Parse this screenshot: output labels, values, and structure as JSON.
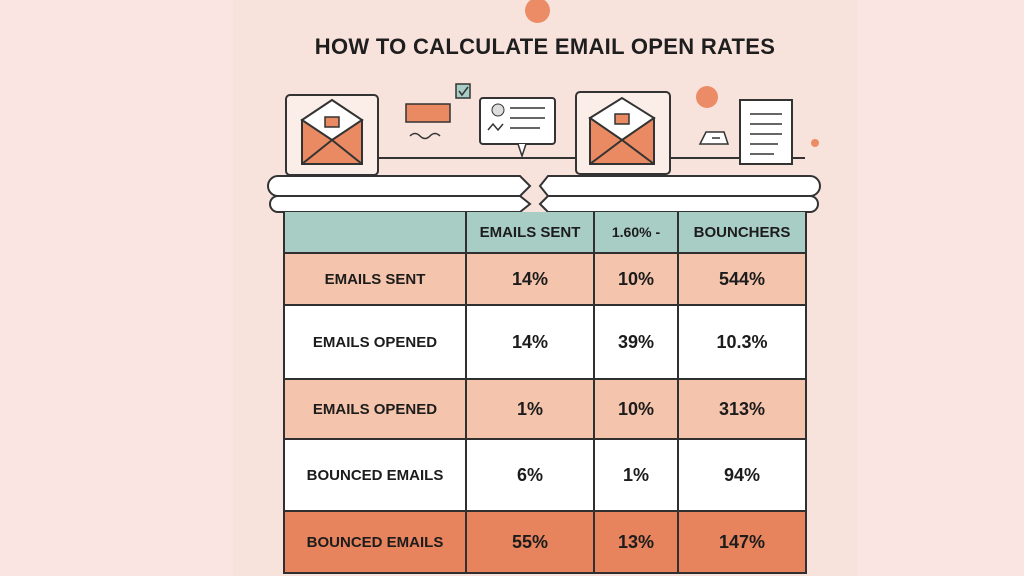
{
  "title": "HOW TO CALCULATE EMAIL OPEN RATES",
  "colors": {
    "header": "#a8cdc4",
    "peach": "#f5c4ac",
    "white": "#ffffff",
    "orange": "#e8845d",
    "accent": "#ec8c66"
  },
  "table": {
    "headers": [
      "",
      "EMAILS SENT",
      "1.60% -",
      "BOUNCHERS"
    ],
    "rows": [
      {
        "label": "EMAILS SENT",
        "values": [
          "14%",
          "10%",
          "544%"
        ]
      },
      {
        "label": "EMAILS OPENED",
        "values": [
          "14%",
          "39%",
          "10.3%"
        ]
      },
      {
        "label": "EMAILS OPENED",
        "values": [
          "1%",
          "10%",
          "313%"
        ]
      },
      {
        "label": "BOUNCED EMAILS",
        "values": [
          "6%",
          "1%",
          "94%"
        ]
      },
      {
        "label": "BOUNCED EMAILS",
        "values": [
          "55%",
          "13%",
          "147%"
        ]
      }
    ]
  },
  "icons": [
    "envelope-icon",
    "chat-bubble-icon",
    "checkbox-icon",
    "document-icon",
    "envelope-icon",
    "folder-icon",
    "document-icon"
  ]
}
